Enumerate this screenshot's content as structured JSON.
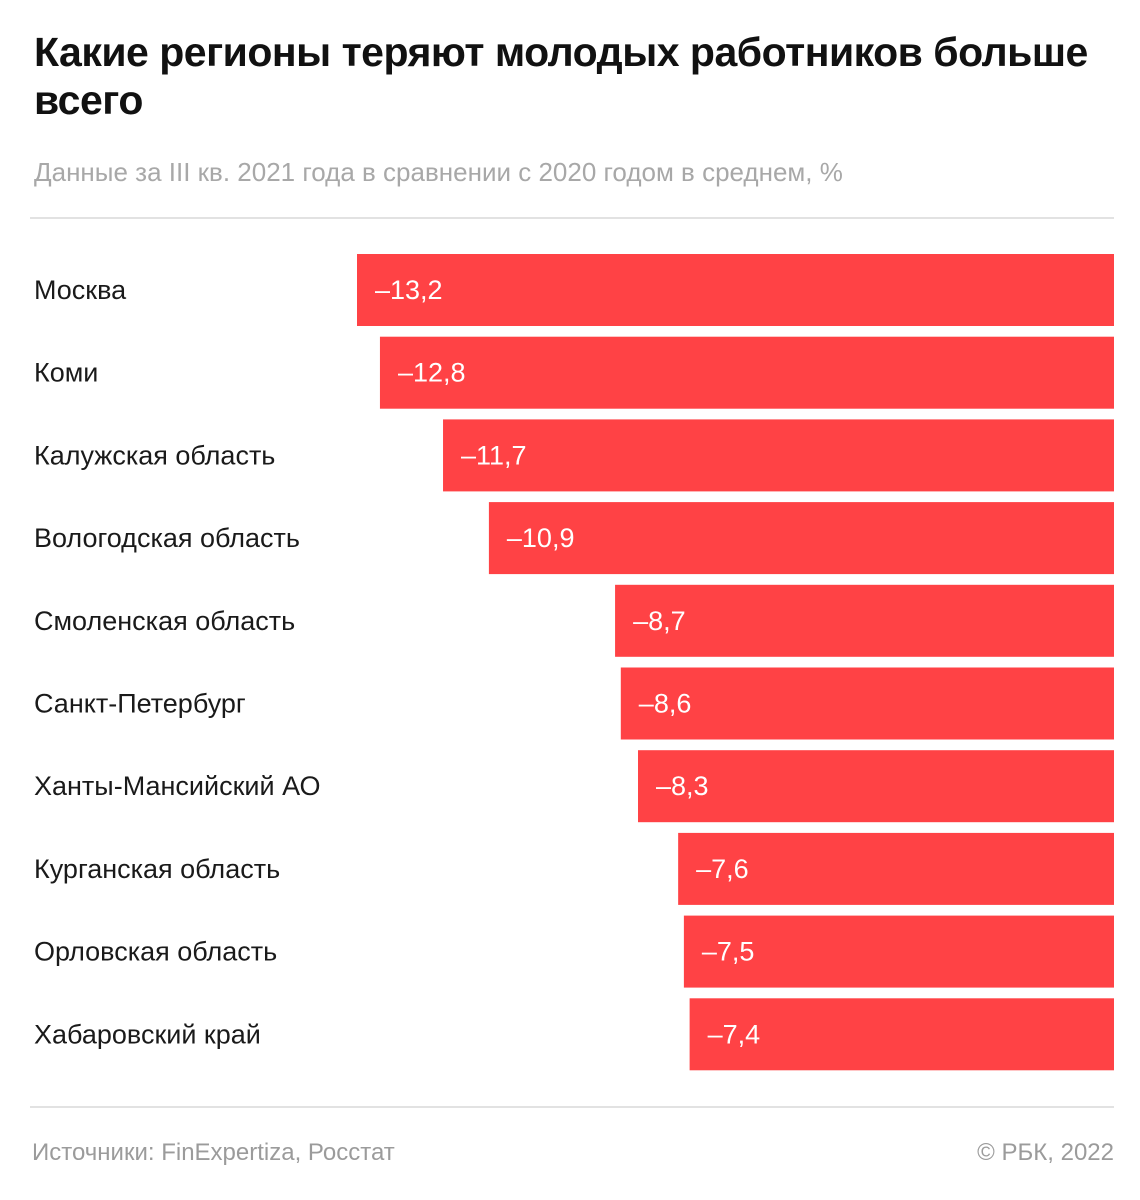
{
  "title": "Какие регионы теряют молодых работников больше всего",
  "subtitle": "Данные за III кв. 2021 года в сравнении с 2020 годом в среднем, %",
  "source": "Источники: FinExpertiza, Росстат",
  "copyright": "© РБК, 2022",
  "colors": {
    "bar": "#ff4245",
    "bar_label": "#ffffff",
    "category_label": "#1a1a1a"
  },
  "chart_data": {
    "type": "bar",
    "orientation": "horizontal",
    "title": "Какие регионы теряют молодых работников больше всего",
    "subtitle": "Данные за III кв. 2021 года в сравнении с 2020 годом в среднем, %",
    "categories": [
      "Москва",
      "Коми",
      "Калужская область",
      "Вологодская область",
      "Смоленская область",
      "Санкт-Петербург",
      "Ханты-Мансийский АО",
      "Курганская область",
      "Орловская область",
      "Хабаровский край"
    ],
    "values": [
      -13.2,
      -12.8,
      -11.7,
      -10.9,
      -8.7,
      -8.6,
      -8.3,
      -7.6,
      -7.5,
      -7.4
    ],
    "value_labels": [
      "–13,2",
      "–12,8",
      "–11,7",
      "–10,9",
      "–8,7",
      "–8,6",
      "–8,3",
      "–7,6",
      "–7,5",
      "–7,4"
    ],
    "xlabel": "",
    "ylabel": "",
    "xlim": [
      -13.2,
      0
    ],
    "grid": false,
    "legend": "none"
  }
}
